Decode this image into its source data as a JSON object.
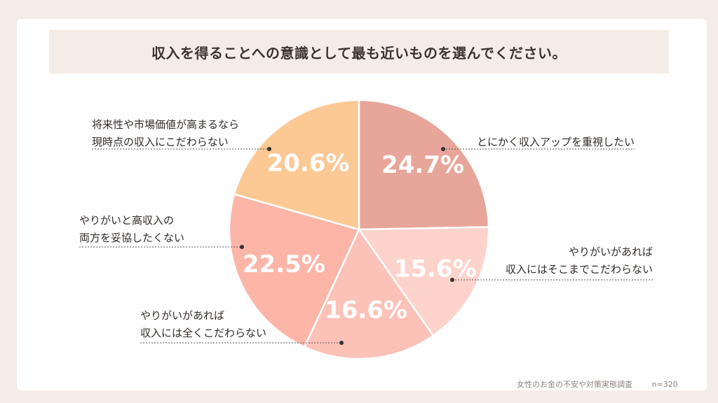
{
  "title": "収入を得ることへの意識として最も近いものを選んでください。",
  "footer": {
    "source": "女性のお金の不安や対策実態調査",
    "n": "n=320"
  },
  "chart_data": {
    "type": "pie",
    "title": "収入を得ることへの意識として最も近いものを選んでください。",
    "slices": [
      {
        "label_lines": [
          "とにかく収入アップを重視したい"
        ],
        "value": 24.7,
        "label": "24.7%",
        "color": "#e7a699"
      },
      {
        "label_lines": [
          "やりがいがあれば",
          "収入にはそこまでこだわらない"
        ],
        "value": 15.6,
        "label": "15.6%",
        "color": "#fdd3cb"
      },
      {
        "label_lines": [
          "やりがいがあれば",
          "収入には全くこだわらない"
        ],
        "value": 16.6,
        "label": "16.6%",
        "color": "#fcc1b7"
      },
      {
        "label_lines": [
          "やりがいと高収入の",
          "両方を妥協したくない"
        ],
        "value": 22.5,
        "label": "22.5%",
        "color": "#fdb5a8"
      },
      {
        "label_lines": [
          "将来性や市場価値が高まるなら",
          "現時点の収入にこだわらない"
        ],
        "value": 20.6,
        "label": "20.6%",
        "color": "#fcc894"
      }
    ]
  }
}
